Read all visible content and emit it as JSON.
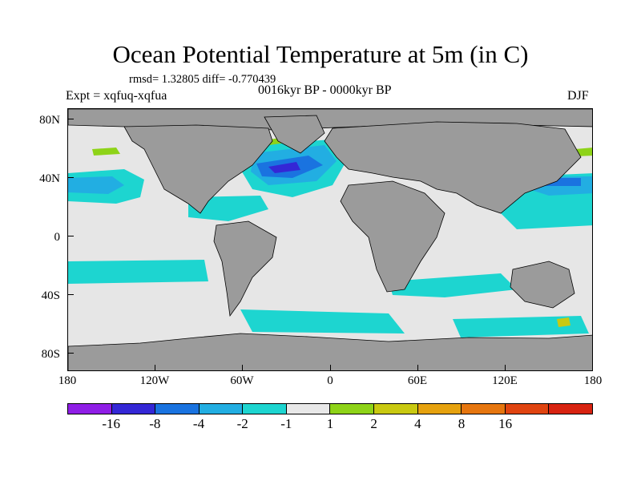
{
  "title": "Ocean Potential Temperature at 5m (in C)",
  "stats": "rmsd= 1.32805  diff= -0.770439",
  "expt": "Expt = xqfuq-xqfua",
  "period": "0016kyr BP - 0000kyr BP",
  "season": "DJF",
  "lat_labels": [
    "80N",
    "40N",
    "0",
    "40S",
    "80S"
  ],
  "lon_labels": [
    "180",
    "120W",
    "60W",
    "0",
    "60E",
    "120E",
    "180"
  ],
  "legend": {
    "colors": [
      "#8f1ee6",
      "#3427d6",
      "#1a73e0",
      "#22aee2",
      "#1dd5d0",
      "#e8e8e8",
      "#8ed318",
      "#c9c911",
      "#e6a20e",
      "#e6760f",
      "#e04410",
      "#d82311"
    ],
    "labels": [
      "-16",
      "-8",
      "-4",
      "-2",
      "-1",
      "1",
      "2",
      "4",
      "8",
      "16"
    ]
  },
  "map_colors": {
    "land": "#9b9b9b",
    "neutral": "#e6e6e6",
    "c1": "#1dd5d0",
    "c2": "#22aee2",
    "c4": "#1a73e0",
    "c8": "#3427d6",
    "w1": "#8ed318",
    "w2": "#c9c911"
  }
}
